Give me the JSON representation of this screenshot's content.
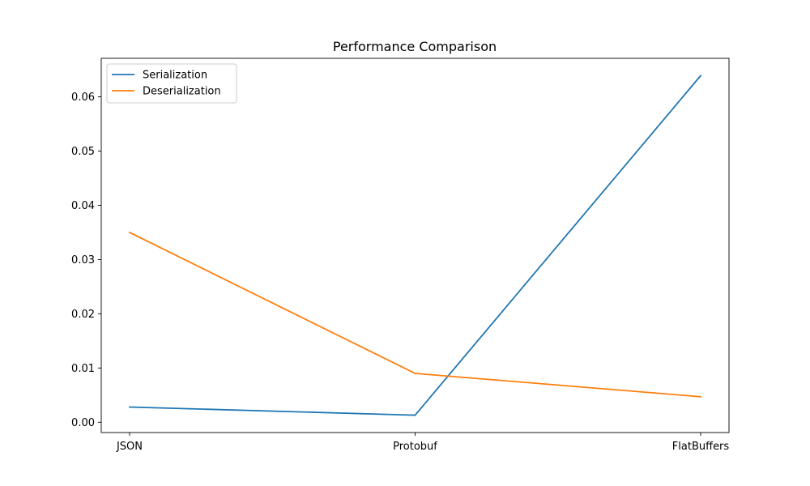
{
  "chart_data": {
    "type": "line",
    "title": "Performance Comparison",
    "xlabel": "",
    "ylabel": "",
    "categories": [
      "JSON",
      "Protobuf",
      "FlatBuffers"
    ],
    "series": [
      {
        "name": "Serialization",
        "color": "#1f77b4",
        "values": [
          0.0028,
          0.0013,
          0.0639
        ]
      },
      {
        "name": "Deserialization",
        "color": "#ff7f0e",
        "values": [
          0.035,
          0.009,
          0.0047
        ]
      }
    ],
    "ylim": [
      -0.0019,
      0.0671
    ],
    "yticks": [
      0.0,
      0.01,
      0.02,
      0.03,
      0.04,
      0.05,
      0.06
    ],
    "ytick_labels": [
      "0.00",
      "0.01",
      "0.02",
      "0.03",
      "0.04",
      "0.05",
      "0.06"
    ],
    "grid": false,
    "legend_position": "top-left"
  }
}
